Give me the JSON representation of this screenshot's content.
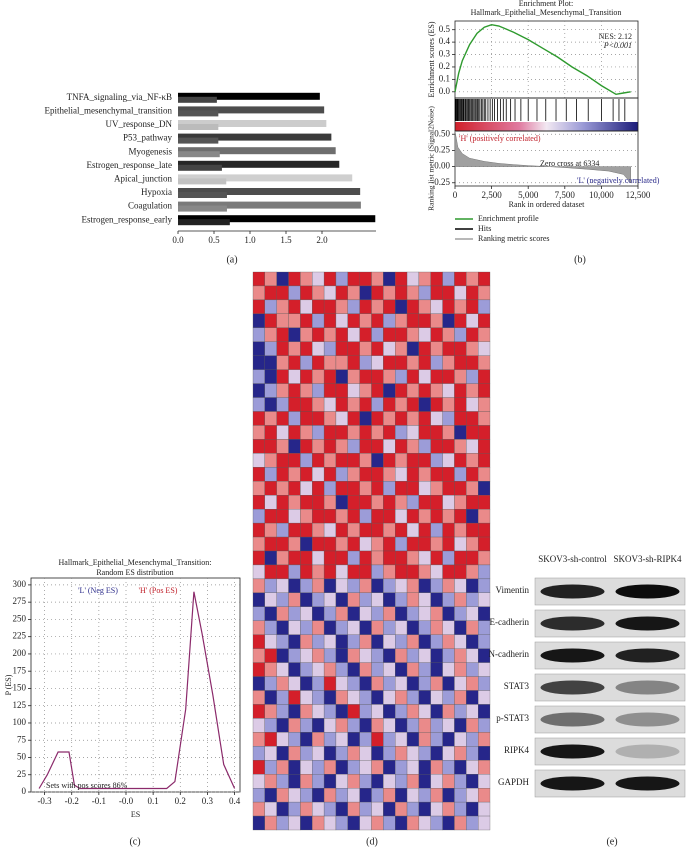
{
  "chart_data": [
    {
      "type": "hbar",
      "panel_label": "(a)",
      "categories": [
        "TNFA_signaling_via_NF-κB",
        "Epithelial_mesenchymal_transition",
        "UV_response_DN",
        "P53_pathway",
        "Myogenesis",
        "Estrogen_response_late",
        "Apical_junction",
        "Hypoxia",
        "Coagulation",
        "Estrogen_response_early"
      ],
      "series": [
        {
          "values": [
            1.97,
            2.03,
            2.06,
            2.13,
            2.19,
            2.24,
            2.42,
            2.53,
            2.54,
            2.74
          ],
          "colors": [
            "#000000",
            "#4d4d4d",
            "#cccccc",
            "#3a3a3a",
            "#6e6e6e",
            "#262626",
            "#cfcfcf",
            "#4d4d4d",
            "#7a7a7a",
            "#000000"
          ]
        },
        {
          "values": [
            0.54,
            0.56,
            0.56,
            0.56,
            0.58,
            0.61,
            0.67,
            0.68,
            0.68,
            0.72
          ],
          "colors": [
            "#444444",
            "#555555",
            "#bbbbbb",
            "#555555",
            "#888888",
            "#444444",
            "#c2c2c2",
            "#555555",
            "#888888",
            "#222222"
          ]
        }
      ],
      "xlim": [
        0,
        2.75
      ],
      "xticks": [
        {
          "value": 0,
          "label": "0.0"
        },
        0.5,
        {
          "value": 1,
          "label": "1.0"
        },
        1.5,
        {
          "value": 2,
          "label": "2.0"
        }
      ]
    },
    {
      "type": "gsea",
      "panel_label": "(b)",
      "title": [
        "Enrichment Plot:",
        "Hallmark_Epithelial_Mesenchymal_Transition"
      ],
      "ylabel": "Enrichment scores (ES)",
      "y2label": "Ranking list metric (Signal2Noise)",
      "xlabel": "Rank in ordered dataset",
      "annotations": [
        "NES: 2.12",
        "P<0.001",
        "'H' (positively correlated)",
        "Zero cross at 6334",
        "'L' (negatively correlated)"
      ],
      "series": [
        {
          "name": "Enrichment profile",
          "color": "#2e9a2e",
          "x": [
            0,
            250,
            500,
            1000,
            1500,
            2000,
            2500,
            3000,
            4000,
            5000,
            6000,
            7000,
            8000,
            9000,
            10000,
            11000,
            11500,
            12000
          ],
          "values": [
            0,
            0.15,
            0.25,
            0.38,
            0.47,
            0.52,
            0.54,
            0.53,
            0.48,
            0.42,
            0.35,
            0.28,
            0.2,
            0.13,
            0.05,
            -0.02,
            -0.01,
            0
          ]
        },
        {
          "name": "Hits",
          "color": "#000000",
          "x": [
            20,
            60,
            110,
            150,
            200,
            260,
            300,
            380,
            420,
            480,
            550,
            600,
            680,
            720,
            800,
            870,
            930,
            1000,
            1080,
            1150,
            1220,
            1300,
            1380,
            1450,
            1530,
            1620,
            1700,
            1800,
            1900,
            2000,
            2100,
            2250,
            2400,
            2550,
            2700,
            2900,
            3100,
            3300,
            3500,
            3800,
            4100,
            4500,
            5000,
            5600,
            6200,
            6900,
            7600,
            8300,
            9100,
            10000,
            10800,
            11200,
            11600
          ]
        },
        {
          "name": "Ranking metric scores",
          "color": "#a0a0a0",
          "x": [
            0,
            200,
            500,
            1000,
            2000,
            3000,
            4000,
            5000,
            6334,
            7500,
            9000,
            10500,
            11500,
            12000
          ],
          "values": [
            0.55,
            0.3,
            0.2,
            0.13,
            0.08,
            0.05,
            0.03,
            0.015,
            0,
            -0.015,
            -0.04,
            -0.07,
            -0.12,
            -0.25
          ]
        }
      ],
      "xlim": [
        0,
        12500
      ],
      "xticks": [
        0,
        {
          "value": 2500,
          "label": "2,500"
        },
        {
          "value": 5000,
          "label": "5,000"
        },
        {
          "value": 7500,
          "label": "7,500"
        },
        {
          "value": 10000,
          "label": "10,000"
        },
        {
          "value": 12500,
          "label": "12,500"
        }
      ],
      "ylim": [
        -0.05,
        0.57
      ],
      "yticks": [
        {
          "value": 0,
          "label": "0.0"
        },
        0.1,
        0.2,
        0.3,
        0.4,
        0.5
      ],
      "y2lim": [
        -0.3,
        0.55
      ],
      "y2ticks": [
        -0.25,
        {
          "value": 0,
          "label": "0.00"
        },
        0.25,
        {
          "value": 0.5,
          "label": "0.50"
        }
      ],
      "grid": true
    },
    {
      "type": "line",
      "panel_label": "(c)",
      "title": [
        "Hallmark_Epithelial_Mesenchymal_Transition:",
        "Random ES distribution"
      ],
      "xlabel": "ES",
      "ylabel": "P (ES)",
      "annotations": [
        "'L' (Neg ES)",
        "'H' (Pos ES)",
        "Sets with pos scores 86%"
      ],
      "color": "#8b2a6b",
      "x": [
        -0.32,
        -0.29,
        -0.25,
        -0.21,
        -0.19,
        -0.17,
        0.15,
        0.18,
        0.22,
        0.25,
        0.28,
        0.32,
        0.36,
        0.4
      ],
      "values": [
        5,
        25,
        58,
        58,
        10,
        5,
        5,
        15,
        120,
        290,
        230,
        140,
        40,
        5
      ],
      "xlim": [
        -0.35,
        0.42
      ],
      "xticks": [
        -0.3,
        -0.2,
        -0.1,
        {
          "value": 0,
          "label": "-0.0"
        },
        0.1,
        0.2,
        0.3,
        0.4
      ],
      "ylim": [
        0,
        310
      ],
      "yticks": [
        0,
        25,
        50,
        75,
        100,
        125,
        150,
        175,
        200,
        225,
        250,
        275,
        300
      ],
      "grid": true
    },
    {
      "type": "heatmap",
      "panel_label": "(d)",
      "palette": [
        "#26268a",
        "#9c9cd8",
        "#dccbe6",
        "#ea8a8a",
        "#d41f2a"
      ],
      "values": [
        [
          2,
          1,
          -2,
          2,
          1,
          0,
          2,
          -1,
          2,
          2,
          1,
          -2,
          2,
          0,
          1,
          2,
          -1,
          2,
          1,
          2
        ],
        [
          1,
          2,
          2,
          -1,
          2,
          1,
          0,
          2,
          1,
          -2,
          2,
          1,
          2,
          1,
          -1,
          2,
          2,
          0,
          2,
          1
        ],
        [
          2,
          -1,
          1,
          2,
          0,
          2,
          2,
          1,
          -1,
          2,
          1,
          2,
          -2,
          2,
          1,
          0,
          2,
          1,
          2,
          -1
        ],
        [
          -2,
          2,
          1,
          1,
          2,
          -1,
          2,
          0,
          2,
          1,
          2,
          -1,
          1,
          2,
          2,
          1,
          -2,
          2,
          0,
          2
        ],
        [
          -1,
          1,
          2,
          -2,
          1,
          2,
          1,
          2,
          0,
          2,
          -1,
          2,
          2,
          1,
          0,
          2,
          1,
          -1,
          2,
          1
        ],
        [
          -2,
          -1,
          2,
          1,
          2,
          0,
          -1,
          2,
          2,
          1,
          2,
          0,
          1,
          -2,
          2,
          1,
          2,
          2,
          1,
          0
        ],
        [
          -2,
          -2,
          1,
          2,
          -1,
          2,
          1,
          1,
          2,
          -1,
          0,
          2,
          2,
          1,
          2,
          -1,
          1,
          2,
          2,
          1
        ],
        [
          -1,
          -2,
          2,
          0,
          2,
          1,
          2,
          -2,
          1,
          2,
          2,
          1,
          -1,
          2,
          0,
          2,
          2,
          1,
          -1,
          2
        ],
        [
          -2,
          -1,
          1,
          2,
          1,
          -1,
          2,
          2,
          0,
          1,
          2,
          -2,
          2,
          1,
          2,
          1,
          0,
          2,
          1,
          2
        ],
        [
          -1,
          -2,
          -1,
          2,
          2,
          1,
          0,
          2,
          1,
          2,
          -1,
          2,
          1,
          2,
          -2,
          2,
          1,
          2,
          0,
          1
        ],
        [
          2,
          1,
          2,
          -1,
          2,
          2,
          1,
          0,
          2,
          -2,
          2,
          1,
          2,
          1,
          2,
          0,
          -1,
          2,
          2,
          1
        ],
        [
          1,
          2,
          0,
          2,
          1,
          -1,
          2,
          2,
          1,
          2,
          1,
          2,
          -1,
          0,
          2,
          2,
          1,
          -2,
          2,
          2
        ],
        [
          2,
          2,
          1,
          -2,
          2,
          1,
          2,
          1,
          -1,
          2,
          2,
          0,
          2,
          1,
          -1,
          2,
          2,
          1,
          0,
          2
        ],
        [
          0,
          1,
          2,
          2,
          -1,
          2,
          1,
          2,
          2,
          1,
          -2,
          2,
          1,
          2,
          2,
          -1,
          0,
          2,
          1,
          2
        ],
        [
          2,
          -1,
          2,
          1,
          2,
          0,
          2,
          -1,
          1,
          2,
          2,
          1,
          0,
          2,
          1,
          2,
          2,
          -1,
          2,
          1
        ],
        [
          1,
          2,
          1,
          2,
          0,
          2,
          -1,
          2,
          2,
          1,
          2,
          -1,
          2,
          2,
          0,
          1,
          2,
          2,
          1,
          -2
        ],
        [
          2,
          0,
          2,
          1,
          2,
          2,
          1,
          -2,
          2,
          2,
          1,
          2,
          1,
          -1,
          2,
          2,
          0,
          1,
          2,
          2
        ],
        [
          -1,
          2,
          2,
          0,
          1,
          2,
          2,
          1,
          2,
          -1,
          2,
          2,
          0,
          2,
          1,
          2,
          1,
          2,
          -2,
          1
        ],
        [
          2,
          1,
          -1,
          2,
          2,
          1,
          0,
          2,
          1,
          2,
          2,
          1,
          2,
          0,
          2,
          -1,
          2,
          1,
          2,
          2
        ],
        [
          1,
          2,
          2,
          1,
          -2,
          2,
          2,
          1,
          2,
          0,
          1,
          2,
          -1,
          2,
          2,
          1,
          2,
          0,
          1,
          2
        ],
        [
          2,
          -2,
          1,
          2,
          2,
          0,
          2,
          2,
          -1,
          2,
          1,
          2,
          2,
          1,
          0,
          2,
          -1,
          2,
          2,
          1
        ],
        [
          0,
          2,
          2,
          -1,
          2,
          1,
          2,
          0,
          2,
          2,
          -1,
          1,
          2,
          2,
          1,
          0,
          2,
          2,
          1,
          -1
        ],
        [
          1,
          -1,
          0,
          -2,
          -1,
          1,
          -2,
          0,
          -1,
          1,
          -2,
          -1,
          0,
          1,
          -2,
          -1,
          1,
          0,
          -2,
          -1
        ],
        [
          -2,
          0,
          -1,
          1,
          -2,
          -1,
          0,
          -2,
          1,
          -1,
          0,
          -2,
          -1,
          1,
          0,
          -2,
          -1,
          1,
          -1,
          0
        ],
        [
          -1,
          -2,
          1,
          -1,
          0,
          -2,
          -1,
          1,
          -2,
          0,
          -1,
          1,
          -2,
          -1,
          0,
          1,
          -2,
          -1,
          0,
          -2
        ],
        [
          1,
          -1,
          -2,
          0,
          -1,
          1,
          -2,
          -1,
          0,
          -2,
          1,
          -1,
          0,
          -2,
          -1,
          1,
          0,
          -2,
          1,
          -1
        ],
        [
          2,
          0,
          -1,
          -2,
          1,
          -1,
          0,
          -2,
          -1,
          1,
          -2,
          0,
          -1,
          1,
          -2,
          -1,
          1,
          0,
          -2,
          -1
        ],
        [
          1,
          2,
          -2,
          -1,
          0,
          1,
          -1,
          -2,
          1,
          0,
          -1,
          -2,
          1,
          -1,
          0,
          -2,
          -1,
          1,
          0,
          -2
        ],
        [
          2,
          1,
          0,
          -2,
          -1,
          0,
          1,
          -1,
          -2,
          1,
          -1,
          0,
          -2,
          1,
          -1,
          -2,
          0,
          1,
          -1,
          0
        ],
        [
          -2,
          -1,
          1,
          0,
          -2,
          -1,
          2,
          0,
          -1,
          -2,
          1,
          -1,
          0,
          -2,
          -1,
          1,
          -2,
          0,
          1,
          -1
        ],
        [
          1,
          -2,
          -1,
          2,
          0,
          -1,
          -2,
          1,
          0,
          -1,
          -2,
          0,
          1,
          -1,
          -2,
          0,
          -1,
          1,
          -2,
          0
        ],
        [
          2,
          1,
          -1,
          -2,
          1,
          0,
          -1,
          -2,
          2,
          -1,
          0,
          -2,
          -1,
          1,
          0,
          -2,
          1,
          -1,
          0,
          -2
        ],
        [
          0,
          -1,
          -2,
          1,
          -1,
          -2,
          0,
          1,
          -1,
          -2,
          1,
          0,
          -2,
          -1,
          1,
          -1,
          0,
          -2,
          1,
          -1
        ],
        [
          1,
          2,
          0,
          -1,
          -2,
          1,
          -1,
          0,
          -2,
          -1,
          2,
          -1,
          0,
          -2,
          1,
          -1,
          -2,
          0,
          -1,
          1
        ],
        [
          -1,
          0,
          -2,
          1,
          -1,
          0,
          -2,
          -1,
          1,
          0,
          -2,
          -1,
          1,
          0,
          -1,
          -2,
          0,
          1,
          -1,
          -2
        ],
        [
          2,
          -1,
          1,
          -2,
          0,
          -1,
          1,
          -2,
          -1,
          0,
          1,
          -2,
          -1,
          0,
          -2,
          1,
          -1,
          -2,
          0,
          1
        ],
        [
          0,
          1,
          -1,
          -2,
          1,
          -1,
          -2,
          0,
          1,
          -1,
          -2,
          0,
          -1,
          1,
          -2,
          0,
          1,
          -1,
          -2,
          0
        ],
        [
          -1,
          -2,
          1,
          0,
          -1,
          -2,
          1,
          -1,
          0,
          -2,
          -1,
          1,
          -2,
          0,
          -1,
          1,
          -2,
          -1,
          0,
          1
        ],
        [
          1,
          0,
          -2,
          -1,
          1,
          0,
          -1,
          -2,
          1,
          -1,
          0,
          -2,
          1,
          -1,
          -2,
          0,
          1,
          -1,
          -2,
          0
        ],
        [
          -2,
          1,
          -1,
          0,
          -2,
          1,
          0,
          -1,
          -2,
          0,
          1,
          -1,
          -2,
          1,
          0,
          -1,
          -2,
          1,
          -1,
          0
        ]
      ]
    },
    {
      "type": "blot",
      "panel_label": "(e)",
      "lanes": [
        "SKOV3-sh-control",
        "SKOV3-sh-RIPK4"
      ],
      "rows": [
        "Vimentin",
        "E-cadherin",
        "N-cadherin",
        "STAT3",
        "p-STAT3",
        "RIPK4",
        "GAPDH"
      ],
      "values": [
        [
          0.85,
          0.95
        ],
        [
          0.8,
          0.9
        ],
        [
          0.9,
          0.85
        ],
        [
          0.7,
          0.4
        ],
        [
          0.5,
          0.35
        ],
        [
          0.9,
          0.2
        ],
        [
          0.9,
          0.9
        ]
      ]
    }
  ]
}
